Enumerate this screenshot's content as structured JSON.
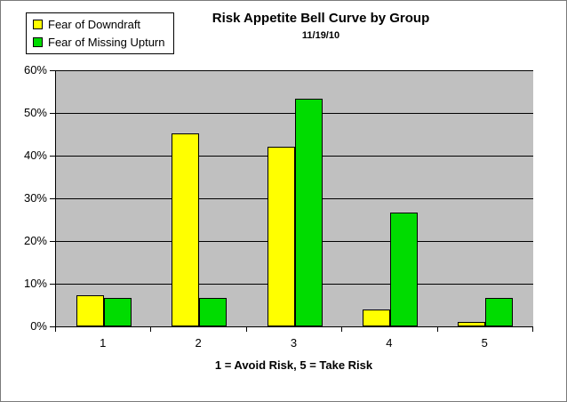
{
  "chart": {
    "title": "Risk Appetite Bell Curve by Group",
    "subtitle": "11/19/10",
    "xlabel": "1 = Avoid Risk, 5 = Take Risk"
  },
  "legend": {
    "items": [
      {
        "label": "Fear of Downdraft",
        "color": "#FFFF00"
      },
      {
        "label": "Fear of Missing Upturn",
        "color": "#00DC00"
      }
    ]
  },
  "chart_data": {
    "type": "bar",
    "title": "Risk Appetite Bell Curve by Group",
    "subtitle": "11/19/10",
    "xlabel": "1 = Avoid Risk, 5 = Take Risk",
    "ylabel": "",
    "categories": [
      "1",
      "2",
      "3",
      "4",
      "5"
    ],
    "series": [
      {
        "name": "Fear of Downdraft",
        "color": "#FFFF00",
        "values": [
          7.2,
          45.2,
          42.1,
          4,
          1
        ]
      },
      {
        "name": "Fear of Missing Upturn",
        "color": "#00DC00",
        "values": [
          6.7,
          6.7,
          53.3,
          26.7,
          6.7
        ]
      }
    ],
    "ylim": [
      0,
      60
    ],
    "ytick_step": 10,
    "ytick_labels": [
      "0%",
      "10%",
      "20%",
      "30%",
      "40%",
      "50%",
      "60%"
    ],
    "grid": true,
    "legend_position": "top-left",
    "plot_background": "#C0C0C0",
    "gridline_color": "#000000"
  }
}
